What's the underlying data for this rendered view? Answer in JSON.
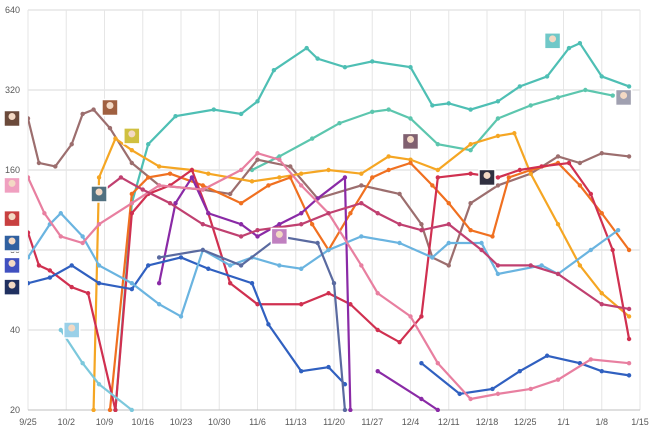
{
  "chart_data": {
    "type": "line",
    "title": "",
    "xlabel": "",
    "ylabel": "",
    "y_scale": "log2",
    "ylim": [
      20,
      640
    ],
    "xlim_days": [
      0,
      112
    ],
    "x_start": "9/25",
    "x_ticks": [
      {
        "day": 0,
        "label": "9/25"
      },
      {
        "day": 7,
        "label": "10/2"
      },
      {
        "day": 14,
        "label": "10/9"
      },
      {
        "day": 21,
        "label": "10/16"
      },
      {
        "day": 28,
        "label": "10/23"
      },
      {
        "day": 35,
        "label": "10/30"
      },
      {
        "day": 42,
        "label": "11/6"
      },
      {
        "day": 49,
        "label": "11/13"
      },
      {
        "day": 56,
        "label": "11/20"
      },
      {
        "day": 63,
        "label": "11/27"
      },
      {
        "day": 70,
        "label": "12/4"
      },
      {
        "day": 77,
        "label": "12/11"
      },
      {
        "day": 84,
        "label": "12/18"
      },
      {
        "day": 91,
        "label": "12/25"
      },
      {
        "day": 98,
        "label": "1/1"
      },
      {
        "day": 105,
        "label": "1/8"
      },
      {
        "day": 112,
        "label": "1/15"
      }
    ],
    "y_ticks": [
      {
        "value": 20,
        "label": "20"
      },
      {
        "value": 40,
        "label": "40"
      },
      {
        "value": 80,
        "label": "80"
      },
      {
        "value": 160,
        "label": "160"
      },
      {
        "value": 320,
        "label": "320"
      },
      {
        "value": 640,
        "label": "640"
      }
    ],
    "grid": true,
    "series": [
      {
        "name": "teal-top",
        "color": "#4ebfb4",
        "points": [
          [
            16,
            20
          ],
          [
            19,
            120
          ],
          [
            22,
            200
          ],
          [
            27,
            255
          ],
          [
            34,
            270
          ],
          [
            39,
            260
          ],
          [
            42,
            290
          ],
          [
            45,
            380
          ],
          [
            51,
            460
          ],
          [
            53,
            420
          ],
          [
            58,
            390
          ],
          [
            63,
            410
          ],
          [
            70,
            390
          ],
          [
            74,
            280
          ],
          [
            77,
            285
          ],
          [
            81,
            270
          ],
          [
            86,
            290
          ],
          [
            90,
            330
          ],
          [
            95,
            360
          ],
          [
            99,
            460
          ],
          [
            101,
            480
          ],
          [
            105,
            360
          ],
          [
            110,
            330
          ]
        ]
      },
      {
        "name": "teal-second",
        "color": "#5cc6ae",
        "points": [
          [
            41,
            160
          ],
          [
            46,
            180
          ],
          [
            52,
            210
          ],
          [
            57,
            240
          ],
          [
            63,
            265
          ],
          [
            66,
            270
          ],
          [
            70,
            250
          ],
          [
            75,
            200
          ],
          [
            81,
            190
          ],
          [
            86,
            250
          ],
          [
            92,
            280
          ],
          [
            97,
            300
          ],
          [
            102,
            320
          ],
          [
            107,
            305
          ],
          [
            110,
            310
          ]
        ]
      },
      {
        "name": "brown",
        "color": "#9c6e6e",
        "points": [
          [
            0,
            250
          ],
          [
            2,
            170
          ],
          [
            5,
            165
          ],
          [
            8,
            200
          ],
          [
            10,
            260
          ],
          [
            12,
            270
          ],
          [
            15,
            230
          ],
          [
            19,
            170
          ],
          [
            24,
            140
          ],
          [
            32,
            135
          ],
          [
            37,
            130
          ],
          [
            42,
            175
          ],
          [
            48,
            165
          ],
          [
            53,
            125
          ],
          [
            61,
            140
          ],
          [
            68,
            130
          ],
          [
            72,
            100
          ],
          [
            74,
            75
          ],
          [
            77,
            70
          ],
          [
            81,
            120
          ],
          [
            86,
            140
          ],
          [
            92,
            155
          ],
          [
            97,
            180
          ],
          [
            101,
            170
          ],
          [
            105,
            185
          ],
          [
            110,
            180
          ]
        ]
      },
      {
        "name": "orange",
        "color": "#f5a623",
        "points": [
          [
            12,
            20
          ],
          [
            13,
            150
          ],
          [
            16,
            210
          ],
          [
            19,
            190
          ],
          [
            24,
            165
          ],
          [
            30,
            160
          ],
          [
            33,
            155
          ],
          [
            41,
            145
          ],
          [
            46,
            150
          ],
          [
            50,
            155
          ],
          [
            55,
            160
          ],
          [
            61,
            155
          ],
          [
            66,
            180
          ],
          [
            70,
            175
          ],
          [
            75,
            160
          ],
          [
            81,
            200
          ],
          [
            86,
            215
          ],
          [
            89,
            220
          ],
          [
            92,
            155
          ],
          [
            97,
            100
          ],
          [
            101,
            70
          ],
          [
            105,
            55
          ],
          [
            110,
            45
          ]
        ]
      },
      {
        "name": "dark-orange",
        "color": "#f07020",
        "points": [
          [
            15,
            20
          ],
          [
            19,
            130
          ],
          [
            22,
            150
          ],
          [
            26,
            155
          ],
          [
            32,
            140
          ],
          [
            39,
            120
          ],
          [
            44,
            140
          ],
          [
            48,
            150
          ],
          [
            52,
            100
          ],
          [
            55,
            80
          ],
          [
            59,
            110
          ],
          [
            63,
            150
          ],
          [
            66,
            160
          ],
          [
            70,
            170
          ],
          [
            74,
            140
          ],
          [
            77,
            120
          ],
          [
            81,
            95
          ],
          [
            85,
            90
          ],
          [
            88,
            150
          ],
          [
            92,
            160
          ],
          [
            97,
            170
          ],
          [
            101,
            140
          ],
          [
            105,
            110
          ],
          [
            110,
            80
          ]
        ]
      },
      {
        "name": "crimson",
        "color": "#d03050",
        "points": [
          [
            0,
            93
          ],
          [
            2,
            70
          ],
          [
            4,
            67
          ],
          [
            8,
            58
          ],
          [
            11,
            55
          ],
          [
            16,
            20
          ],
          [
            19,
            110
          ],
          [
            22,
            130
          ],
          [
            26,
            140
          ],
          [
            30,
            160
          ],
          [
            33,
            110
          ],
          [
            37,
            60
          ],
          [
            42,
            50
          ],
          [
            50,
            50
          ],
          [
            55,
            55
          ],
          [
            59,
            50
          ],
          [
            64,
            40
          ],
          [
            68,
            36
          ],
          [
            72,
            45
          ],
          [
            75,
            150
          ],
          [
            81,
            155
          ],
          [
            86,
            150
          ],
          [
            90,
            160
          ],
          [
            94,
            165
          ],
          [
            99,
            170
          ],
          [
            103,
            130
          ],
          [
            107,
            80
          ],
          [
            110,
            37
          ]
        ]
      },
      {
        "name": "purple",
        "color": "#8a2aa6",
        "points": [
          [
            24,
            60
          ],
          [
            27,
            120
          ],
          [
            30,
            150
          ],
          [
            33,
            110
          ],
          [
            39,
            100
          ],
          [
            42,
            90
          ],
          [
            46,
            100
          ],
          [
            50,
            110
          ],
          [
            53,
            125
          ],
          [
            58,
            150
          ],
          [
            59,
            20
          ]
        ]
      },
      {
        "name": "purple-late",
        "color": "#8a2aa6",
        "points": [
          [
            64,
            28
          ],
          [
            72,
            22
          ],
          [
            75,
            20
          ]
        ]
      },
      {
        "name": "royal-blue",
        "color": "#3060c0",
        "points": [
          [
            0,
            60
          ],
          [
            4,
            63
          ],
          [
            8,
            70
          ],
          [
            13,
            60
          ],
          [
            19,
            57
          ],
          [
            22,
            70
          ],
          [
            28,
            75
          ],
          [
            33,
            68
          ],
          [
            41,
            60
          ],
          [
            44,
            42
          ],
          [
            50,
            28
          ],
          [
            55,
            29
          ],
          [
            58,
            25
          ]
        ]
      },
      {
        "name": "royal-blue-late",
        "color": "#3060c0",
        "points": [
          [
            72,
            30
          ],
          [
            79,
            23
          ],
          [
            85,
            24
          ],
          [
            90,
            28
          ],
          [
            95,
            32
          ],
          [
            101,
            30
          ],
          [
            105,
            28
          ],
          [
            110,
            27
          ]
        ]
      },
      {
        "name": "light-blue",
        "color": "#6ab4e0",
        "points": [
          [
            0,
            75
          ],
          [
            4,
            100
          ],
          [
            6,
            110
          ],
          [
            10,
            90
          ],
          [
            13,
            70
          ],
          [
            19,
            60
          ],
          [
            24,
            50
          ],
          [
            28,
            45
          ],
          [
            32,
            80
          ],
          [
            37,
            70
          ],
          [
            41,
            75
          ],
          [
            46,
            70
          ],
          [
            50,
            68
          ],
          [
            55,
            80
          ],
          [
            61,
            90
          ],
          [
            68,
            85
          ],
          [
            74,
            75
          ],
          [
            77,
            85
          ],
          [
            83,
            85
          ],
          [
            86,
            65
          ],
          [
            94,
            70
          ],
          [
            97,
            65
          ],
          [
            103,
            80
          ],
          [
            108,
            95
          ]
        ]
      },
      {
        "name": "pale-cyan",
        "color": "#7cc8dc",
        "points": [
          [
            6,
            40
          ],
          [
            10,
            30
          ],
          [
            13,
            25
          ],
          [
            19,
            20
          ]
        ]
      },
      {
        "name": "pink",
        "color": "#e87fa0",
        "points": [
          [
            0,
            150
          ],
          [
            3,
            110
          ],
          [
            6,
            90
          ],
          [
            10,
            85
          ],
          [
            13,
            100
          ],
          [
            19,
            120
          ],
          [
            24,
            140
          ],
          [
            32,
            135
          ],
          [
            39,
            160
          ],
          [
            42,
            185
          ],
          [
            46,
            175
          ],
          [
            50,
            140
          ],
          [
            55,
            110
          ],
          [
            61,
            70
          ],
          [
            64,
            55
          ],
          [
            70,
            45
          ],
          [
            75,
            30
          ],
          [
            81,
            22
          ],
          [
            86,
            23
          ],
          [
            92,
            24
          ],
          [
            97,
            26
          ],
          [
            103,
            31
          ],
          [
            110,
            30
          ]
        ]
      },
      {
        "name": "rose",
        "color": "#c04070",
        "points": [
          [
            13,
            130
          ],
          [
            17,
            150
          ],
          [
            21,
            135
          ],
          [
            26,
            120
          ],
          [
            32,
            100
          ],
          [
            39,
            90
          ],
          [
            42,
            95
          ],
          [
            50,
            100
          ],
          [
            55,
            110
          ],
          [
            61,
            120
          ],
          [
            64,
            110
          ],
          [
            68,
            100
          ],
          [
            72,
            95
          ],
          [
            77,
            100
          ],
          [
            83,
            80
          ],
          [
            86,
            70
          ],
          [
            92,
            70
          ],
          [
            97,
            65
          ],
          [
            105,
            50
          ],
          [
            110,
            48
          ]
        ]
      },
      {
        "name": "slate",
        "color": "#5a6aa0",
        "points": [
          [
            24,
            75
          ],
          [
            32,
            80
          ],
          [
            39,
            70
          ],
          [
            46,
            90
          ],
          [
            53,
            85
          ],
          [
            56,
            60
          ],
          [
            58,
            20
          ]
        ]
      }
    ]
  },
  "legend_icons": [
    {
      "name": "icon-brown",
      "day": -4,
      "value": 250,
      "color": "#6b4a3a"
    },
    {
      "name": "icon-pink",
      "day": -4,
      "value": 140,
      "color": "#f0a0c0"
    },
    {
      "name": "icon-red",
      "day": -4,
      "value": 105,
      "color": "#c84040"
    },
    {
      "name": "icon-blue",
      "day": -4,
      "value": 85,
      "color": "#3060a0"
    },
    {
      "name": "icon-crimson",
      "day": -4,
      "value": 70,
      "color": "#4050c0"
    },
    {
      "name": "icon-navy",
      "day": -4,
      "value": 58,
      "color": "#203060"
    },
    {
      "name": "icon-light",
      "day": 8,
      "value": 40,
      "color": "#9ad0e8"
    },
    {
      "name": "icon-orange",
      "day": 15,
      "value": 275,
      "color": "#a06040"
    },
    {
      "name": "icon-yellow",
      "day": 19,
      "value": 215,
      "color": "#d0c040"
    },
    {
      "name": "icon-teal",
      "day": 13,
      "value": 130,
      "color": "#507080"
    },
    {
      "name": "icon-violet",
      "day": 46,
      "value": 90,
      "color": "#c080c0"
    },
    {
      "name": "icon-grey",
      "day": 70,
      "value": 205,
      "color": "#806070"
    },
    {
      "name": "icon-dark",
      "day": 84,
      "value": 150,
      "color": "#303040"
    },
    {
      "name": "icon-cyan",
      "day": 96,
      "value": 490,
      "color": "#70c8c8"
    },
    {
      "name": "icon-right",
      "day": 109,
      "value": 300,
      "color": "#a0a0b0"
    }
  ]
}
